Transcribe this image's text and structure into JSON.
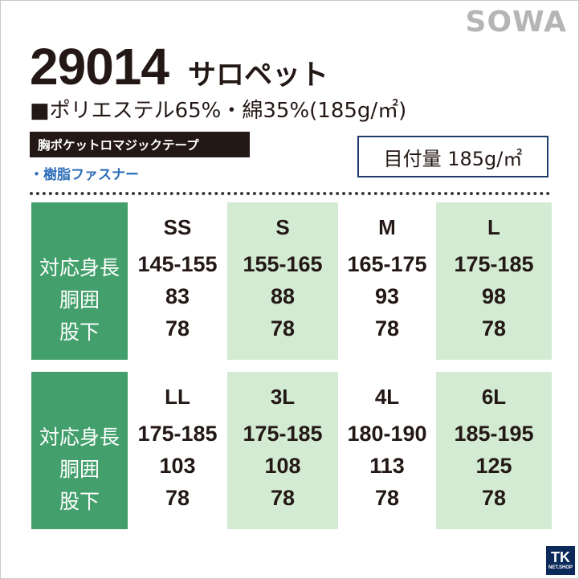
{
  "brand": "SOWA",
  "product": {
    "number": "29014",
    "name": "サロペット",
    "material": "■ポリエステル65%・綿35%(185g/㎡)"
  },
  "features": {
    "primary": "胸ポケットロマジックテープ",
    "secondary": "・樹脂ファスナー"
  },
  "weight_label": "目付量 185g/㎡",
  "row_labels": [
    "対応身長",
    "胴囲",
    "股下"
  ],
  "tables": [
    {
      "sizes": [
        {
          "name": "SS",
          "height": "145-155",
          "waist": "83",
          "inseam": "78"
        },
        {
          "name": "S",
          "height": "155-165",
          "waist": "88",
          "inseam": "78"
        },
        {
          "name": "M",
          "height": "165-175",
          "waist": "93",
          "inseam": "78"
        },
        {
          "name": "L",
          "height": "175-185",
          "waist": "98",
          "inseam": "78"
        }
      ]
    },
    {
      "sizes": [
        {
          "name": "LL",
          "height": "175-185",
          "waist": "103",
          "inseam": "78"
        },
        {
          "name": "3L",
          "height": "175-185",
          "waist": "108",
          "inseam": "78"
        },
        {
          "name": "4L",
          "height": "180-190",
          "waist": "113",
          "inseam": "78"
        },
        {
          "name": "6L",
          "height": "185-195",
          "waist": "125",
          "inseam": "78"
        }
      ]
    }
  ],
  "colors": {
    "label_green": "#43a06c",
    "light_green": "#d3ebd3",
    "weight_border": "#1f3b6e",
    "feature_blue": "#2e6eb8"
  },
  "shop_logo": {
    "mark": "TK",
    "sub": "NET.SHOP"
  }
}
